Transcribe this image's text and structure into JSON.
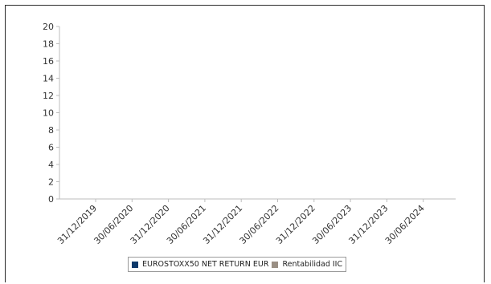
{
  "chart_data": {
    "type": "bar",
    "title": "",
    "xlabel": "",
    "ylabel": "",
    "ylim": [
      0,
      20
    ],
    "yticks": [
      0,
      2,
      4,
      6,
      8,
      10,
      12,
      14,
      16,
      18,
      20
    ],
    "categories": [
      "31/12/2019",
      "30/06/2020",
      "31/12/2020",
      "30/06/2021",
      "31/12/2021",
      "30/06/2022",
      "31/12/2022",
      "30/06/2023",
      "31/12/2023",
      "30/06/2024"
    ],
    "series": [
      {
        "name": "EUROSTOXX50 NET RETURN EUR",
        "color": "#0e3a6b",
        "values": [
          null,
          null,
          null,
          null,
          null,
          null,
          null,
          null,
          null,
          null
        ]
      },
      {
        "name": "Rentabilidad IIC",
        "color": "#9a8f84",
        "values": [
          null,
          null,
          null,
          null,
          null,
          null,
          null,
          null,
          null,
          null
        ]
      }
    ],
    "grid": false,
    "legend_position": "bottom-center"
  }
}
